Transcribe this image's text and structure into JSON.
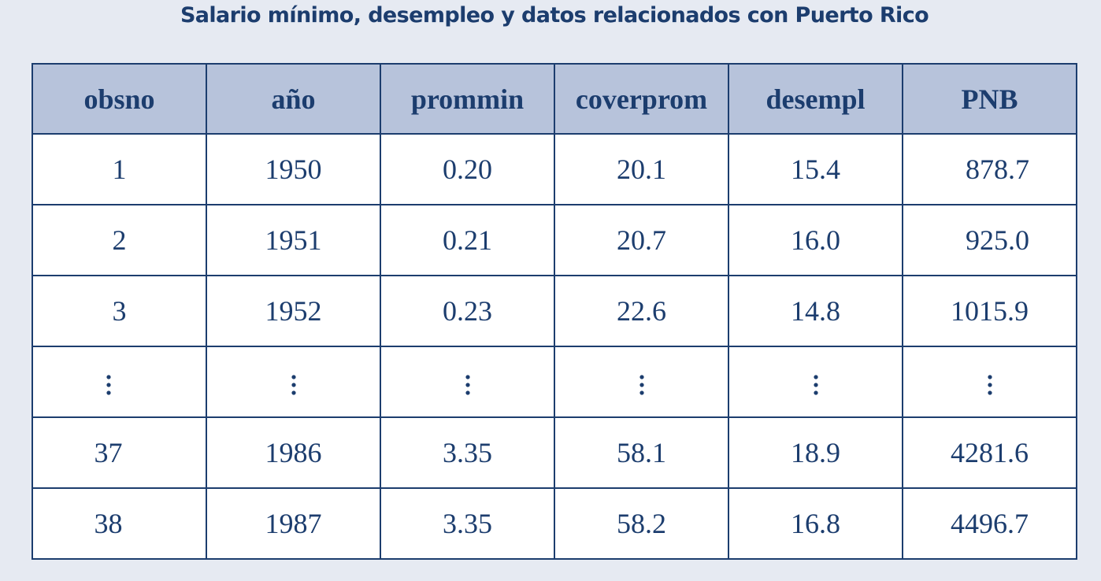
{
  "title": "Salario mínimo, desempleo y datos relacionados con Puerto Rico",
  "table": {
    "headers": [
      "obsno",
      "año",
      "prommin",
      "coverprom",
      "desempl",
      "PNB"
    ],
    "rows": [
      [
        "1",
        "1950",
        "0.20",
        "20.1",
        "15.4",
        "878.7"
      ],
      [
        "2",
        "1951",
        "0.21",
        "20.7",
        "16.0",
        "925.0"
      ],
      [
        "3",
        "1952",
        "0.23",
        "22.6",
        "14.8",
        "1015.9"
      ],
      [
        "⋮",
        "⋮",
        "⋮",
        "⋮",
        "⋮",
        "⋮"
      ],
      [
        "37",
        "1986",
        "3.35",
        "58.1",
        "18.9",
        "4281.6"
      ],
      [
        "38",
        "1987",
        "3.35",
        "58.2",
        "16.8",
        "4496.7"
      ]
    ]
  }
}
